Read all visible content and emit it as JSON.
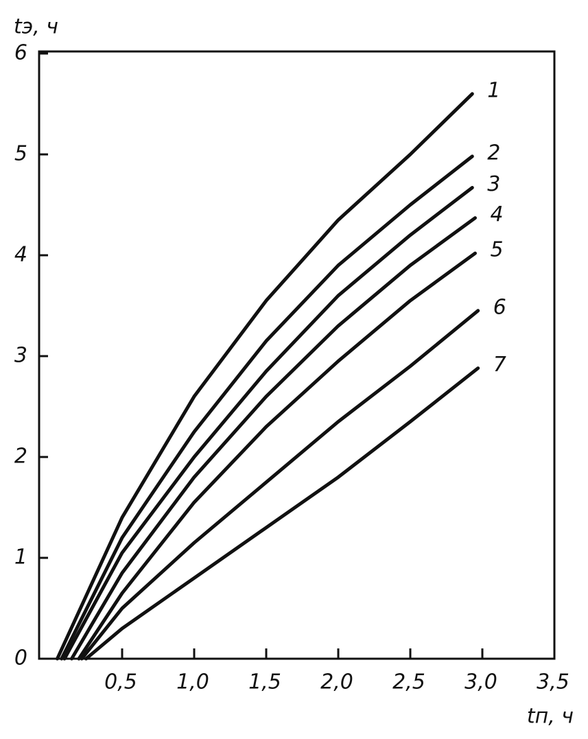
{
  "chart_data": {
    "type": "line",
    "y_label": "tэ, ч",
    "x_label": "tп, ч",
    "xlim": [
      0,
      3.5
    ],
    "ylim": [
      0,
      6
    ],
    "xticks": [
      {
        "value": 0.5,
        "label": "0,5"
      },
      {
        "value": 1.0,
        "label": "1,0"
      },
      {
        "value": 1.5,
        "label": "1,5"
      },
      {
        "value": 2.0,
        "label": "2,0"
      },
      {
        "value": 2.5,
        "label": "2,5"
      },
      {
        "value": 3.0,
        "label": "3,0"
      },
      {
        "value": 3.5,
        "label": "3,5"
      }
    ],
    "yticks": [
      0,
      1,
      2,
      3,
      4,
      5,
      6
    ],
    "series": [
      {
        "name": "1",
        "color": "#111111",
        "x": [
          0.05,
          0.5,
          1.0,
          1.5,
          2.0,
          2.5,
          2.93
        ],
        "values": [
          0,
          1.4,
          2.6,
          3.55,
          4.35,
          5.0,
          5.6
        ]
      },
      {
        "name": "2",
        "color": "#111111",
        "x": [
          0.08,
          0.5,
          1.0,
          1.5,
          2.0,
          2.5,
          2.93
        ],
        "values": [
          0,
          1.2,
          2.25,
          3.15,
          3.9,
          4.5,
          4.98
        ]
      },
      {
        "name": "3",
        "color": "#111111",
        "x": [
          0.1,
          0.5,
          1.0,
          1.5,
          2.0,
          2.5,
          2.93
        ],
        "values": [
          0,
          1.05,
          2.0,
          2.85,
          3.6,
          4.2,
          4.67
        ]
      },
      {
        "name": "4",
        "color": "#111111",
        "x": [
          0.15,
          0.5,
          1.0,
          1.5,
          2.0,
          2.5,
          2.95
        ],
        "values": [
          0,
          0.85,
          1.8,
          2.6,
          3.3,
          3.9,
          4.37
        ]
      },
      {
        "name": "5",
        "color": "#111111",
        "x": [
          0.2,
          0.5,
          1.0,
          1.5,
          2.0,
          2.5,
          2.95
        ],
        "values": [
          0,
          0.65,
          1.55,
          2.3,
          2.95,
          3.55,
          4.02
        ]
      },
      {
        "name": "6",
        "color": "#111111",
        "x": [
          0.22,
          0.5,
          1.0,
          1.5,
          2.0,
          2.5,
          2.97
        ],
        "values": [
          0,
          0.5,
          1.15,
          1.75,
          2.35,
          2.9,
          3.45
        ]
      },
      {
        "name": "7",
        "color": "#111111",
        "x": [
          0.25,
          0.5,
          1.0,
          1.5,
          2.0,
          2.5,
          2.97
        ],
        "values": [
          0,
          0.3,
          0.8,
          1.3,
          1.8,
          2.35,
          2.88
        ]
      }
    ]
  }
}
